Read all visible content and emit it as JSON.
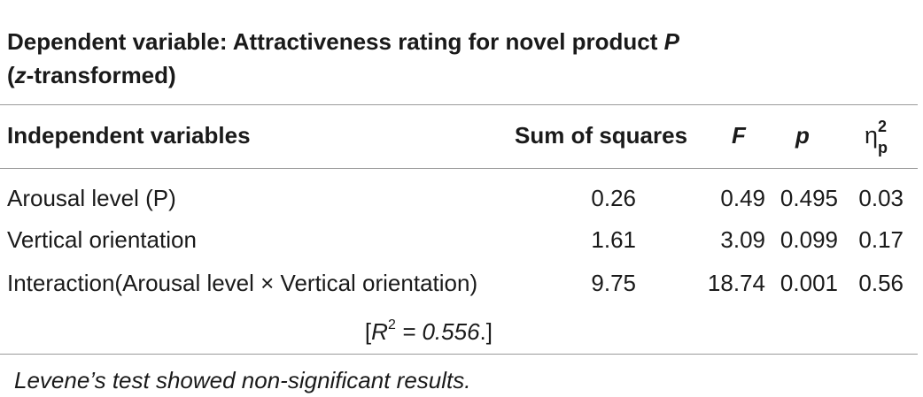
{
  "table": {
    "title_prefix": "Dependent variable: Attractiveness rating for novel product ",
    "title_p": "P",
    "title_open": "(",
    "title_z": "z",
    "title_suffix": "-transformed)",
    "headers": {
      "independent": "Independent variables",
      "sum_of_squares": "Sum of squares",
      "f": "F",
      "p": "p",
      "eta_symbol": "η",
      "eta_sup": "2",
      "eta_sub": "p"
    },
    "rows": [
      {
        "label": "Arousal level (P)",
        "ss": "0.26",
        "f": "0.49",
        "p": "0.495",
        "eta": "0.03"
      },
      {
        "label": "Vertical orientation",
        "ss": "1.61",
        "f": "3.09",
        "p": "0.099",
        "eta": "0.17"
      },
      {
        "label": "Interaction(Arousal level × Vertical orientation)",
        "ss": "9.75",
        "f": "18.74",
        "p": "0.001",
        "eta": "0.56"
      }
    ],
    "rsquared": {
      "open": "[",
      "r": "R",
      "sup": "2",
      "eq": " = 0.556",
      "close": ".]"
    },
    "note": "Levene’s test showed non-significant results."
  }
}
